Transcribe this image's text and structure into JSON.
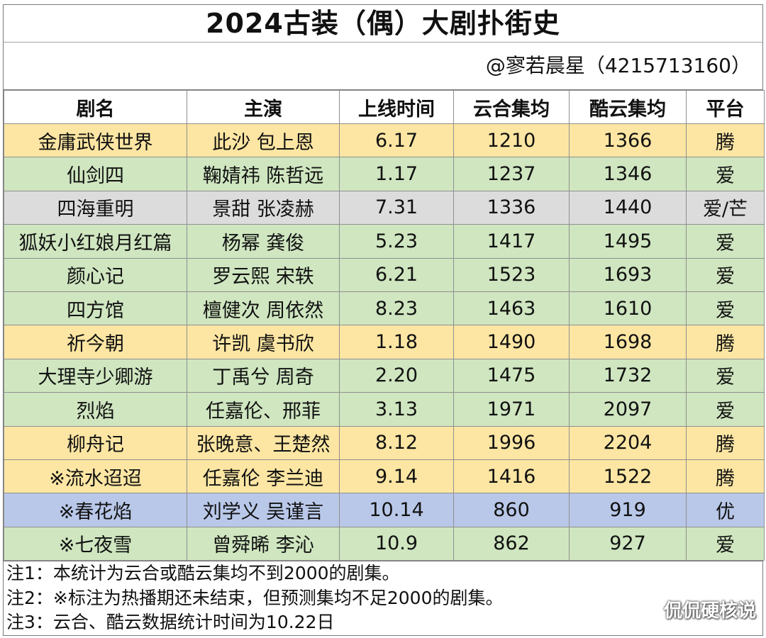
{
  "title": "2024古装（偶）大剧扑街史",
  "author": "@寥若晨星（4215713160）",
  "headers": [
    "剧名",
    "主演",
    "上线时间",
    "云合集均",
    "酷云集均",
    "平台"
  ],
  "rows": [
    {
      "name": "金庸武侠世界",
      "cast": "此沙 包上恩",
      "date": "6.17",
      "yunhe": "1210",
      "kuyun": "1366",
      "platform": "腾",
      "color": "#fde6a3"
    },
    {
      "name": "仙剑四",
      "cast": "鞠婧祎 陈哲远",
      "date": "1.17",
      "yunhe": "1237",
      "kuyun": "1346",
      "platform": "爱",
      "color": "#cfe6c0"
    },
    {
      "name": "四海重明",
      "cast": "景甜 张凌赫",
      "date": "7.31",
      "yunhe": "1336",
      "kuyun": "1440",
      "platform": "爱/芒",
      "color": "#dcdcdc"
    },
    {
      "name": "狐妖小红娘月红篇",
      "cast": "杨幂 龚俊",
      "date": "5.23",
      "yunhe": "1417",
      "kuyun": "1495",
      "platform": "爱",
      "color": "#cfe6c0"
    },
    {
      "name": "颜心记",
      "cast": "罗云熙 宋轶",
      "date": "6.21",
      "yunhe": "1523",
      "kuyun": "1693",
      "platform": "爱",
      "color": "#cfe6c0"
    },
    {
      "name": "四方馆",
      "cast": "檀健次 周依然",
      "date": "8.23",
      "yunhe": "1463",
      "kuyun": "1610",
      "platform": "爱",
      "color": "#cfe6c0"
    },
    {
      "name": "祈今朝",
      "cast": "许凯 虞书欣",
      "date": "1.18",
      "yunhe": "1490",
      "kuyun": "1698",
      "platform": "腾",
      "color": "#fde6a3"
    },
    {
      "name": "大理寺少卿游",
      "cast": "丁禹兮 周奇",
      "date": "2.20",
      "yunhe": "1475",
      "kuyun": "1732",
      "platform": "爱",
      "color": "#cfe6c0"
    },
    {
      "name": "烈焰",
      "cast": "任嘉伦、邢菲",
      "date": "3.13",
      "yunhe": "1971",
      "kuyun": "2097",
      "platform": "爱",
      "color": "#cfe6c0"
    },
    {
      "name": "柳舟记",
      "cast": "张晚意、王楚然",
      "date": "8.12",
      "yunhe": "1996",
      "kuyun": "2204",
      "platform": "腾",
      "color": "#fde6a3"
    },
    {
      "name": "※流水迢迢",
      "cast": "任嘉伦 李兰迪",
      "date": "9.14",
      "yunhe": "1416",
      "kuyun": "1522",
      "platform": "腾",
      "color": "#fde6a3"
    },
    {
      "name": "※春花焰",
      "cast": "刘学义 吴谨言",
      "date": "10.14",
      "yunhe": "860",
      "kuyun": "919",
      "platform": "优",
      "color": "#b9c8e9"
    },
    {
      "name": "※七夜雪",
      "cast": "曾舜晞 李沁",
      "date": "10.9",
      "yunhe": "862",
      "kuyun": "927",
      "platform": "爱",
      "color": "#cfe6c0"
    }
  ],
  "notes": [
    "注1：本统计为云合或酷云集均不到2000的剧集。",
    "注2：※标注为热播期还未结束，但预测集均不足2000的剧集。",
    "注3：云合、酷云数据统计时间为10.22日"
  ],
  "watermark": "侃侃硬核说"
}
